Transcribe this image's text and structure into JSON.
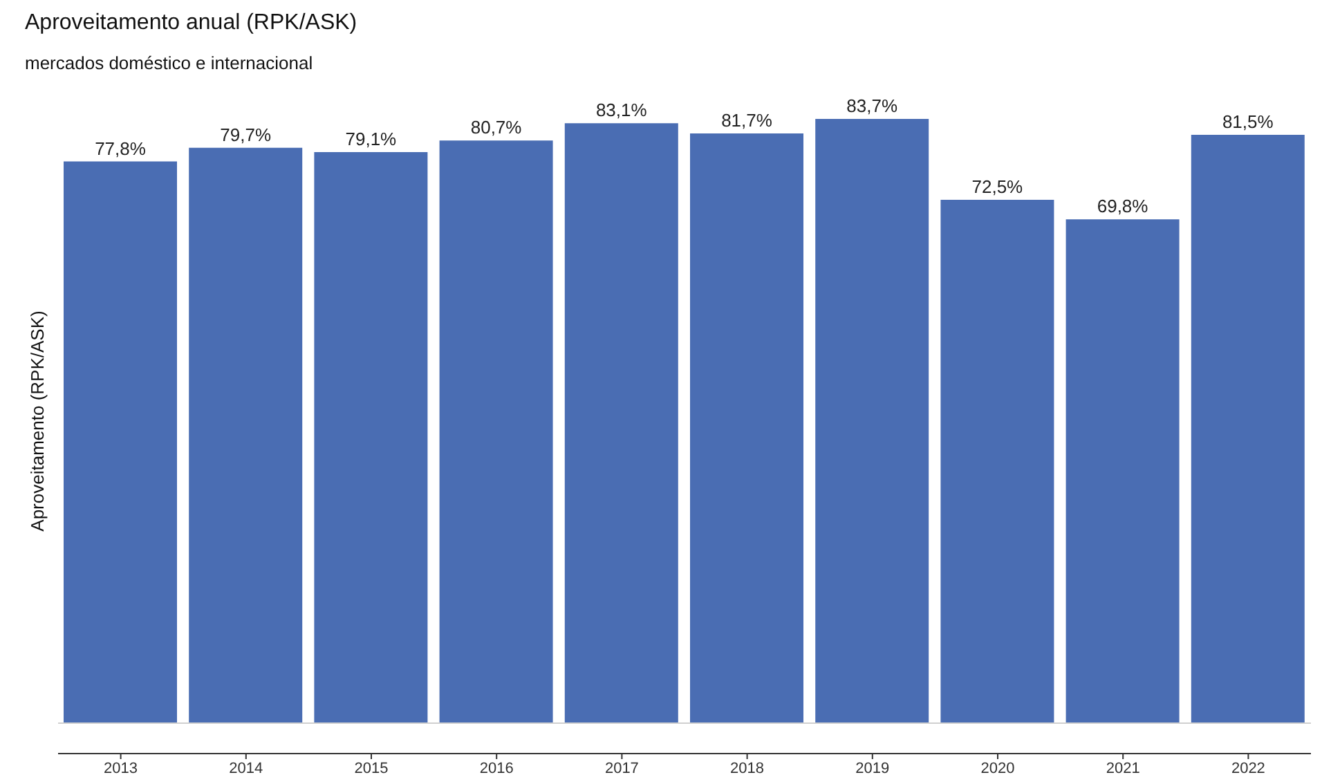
{
  "chart_data": {
    "type": "bar",
    "title": "Aproveitamento anual (RPK/ASK)",
    "subtitle": "mercados doméstico e internacional",
    "ylabel": "Aproveitamento (RPK/ASK)",
    "categories": [
      "2013",
      "2014",
      "2015",
      "2016",
      "2017",
      "2018",
      "2019",
      "2020",
      "2021",
      "2022"
    ],
    "values": [
      77.8,
      79.7,
      79.1,
      80.7,
      83.1,
      81.7,
      83.7,
      72.5,
      69.8,
      81.5
    ],
    "value_labels": [
      "77,8%",
      "79,7%",
      "79,1%",
      "80,7%",
      "83,1%",
      "81,7%",
      "83,7%",
      "72,5%",
      "69,8%",
      "81,5%"
    ],
    "color": "#4a6db3"
  }
}
